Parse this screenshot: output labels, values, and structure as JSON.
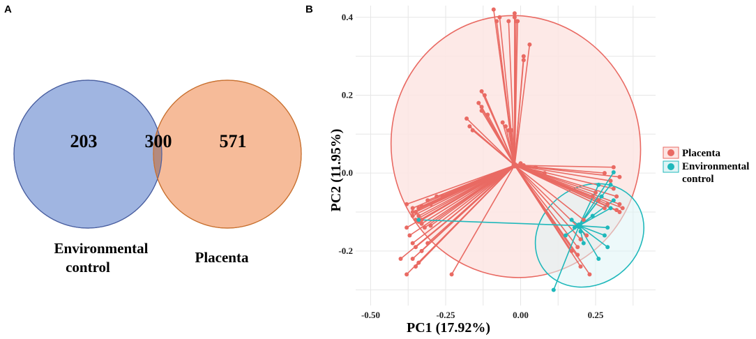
{
  "panels": {
    "a": "A",
    "b": "B"
  },
  "venn": {
    "sets": [
      {
        "name": "Environmental control",
        "name_line1": "Environmental",
        "name_line2": "control",
        "only": "203",
        "color": "#8fa8dc",
        "stroke": "#4a5fa0"
      },
      {
        "name": "Placenta",
        "only": "571",
        "color": "#f4aa7f",
        "stroke": "#c8702f"
      }
    ],
    "shared": "300"
  },
  "chart_data": {
    "type": "scatter",
    "title": "",
    "xlabel": "PC1 (17.92%)",
    "ylabel": "PC2 (11.95%)",
    "xlim": [
      -0.55,
      0.45
    ],
    "ylim": [
      -0.34,
      0.43
    ],
    "x_ticks": [
      -0.5,
      -0.25,
      0.0,
      0.25
    ],
    "x_tick_labels": [
      "-0.50",
      "-0.25",
      "0.00",
      "0.25"
    ],
    "y_ticks": [
      0.4,
      0.2,
      0.0,
      -0.2
    ],
    "y_tick_labels": [
      "0.4",
      "0.2",
      "0.0",
      "-0.2"
    ],
    "legend": {
      "position": "right",
      "entries": [
        {
          "label": "Placenta",
          "color": "#e96a63"
        },
        {
          "label_line1": "Environmental",
          "label_line2": "control",
          "label": "Environmental control",
          "color": "#1fb8bb"
        }
      ]
    },
    "series": [
      {
        "name": "Placenta",
        "color": "#e96a63",
        "fill": "#fde5e3",
        "centroid": [
          -0.02,
          0.02
        ],
        "ellipse": {
          "cx": -0.016,
          "cy": 0.068,
          "rx": 0.415,
          "ry": 0.337,
          "angle_deg": 12
        },
        "points": [
          [
            -0.09,
            0.42
          ],
          [
            -0.07,
            0.4
          ],
          [
            -0.08,
            0.39
          ],
          [
            -0.04,
            0.39
          ],
          [
            -0.02,
            0.4
          ],
          [
            -0.01,
            0.39
          ],
          [
            -0.02,
            0.41
          ],
          [
            -0.015,
            0.39
          ],
          [
            0.03,
            0.33
          ],
          [
            0.01,
            0.29
          ],
          [
            0.01,
            0.3
          ],
          [
            -0.13,
            0.21
          ],
          [
            -0.12,
            0.2
          ],
          [
            -0.14,
            0.18
          ],
          [
            -0.13,
            0.17
          ],
          [
            -0.13,
            0.16
          ],
          [
            -0.11,
            0.15
          ],
          [
            -0.18,
            0.14
          ],
          [
            -0.17,
            0.12
          ],
          [
            -0.16,
            0.11
          ],
          [
            -0.06,
            0.13
          ],
          [
            -0.05,
            0.12
          ],
          [
            -0.03,
            0.11
          ],
          [
            -0.04,
            0.11
          ],
          [
            0.0,
            0.025
          ],
          [
            0.01,
            0.02
          ],
          [
            0.05,
            0.015
          ],
          [
            0.08,
            0.0
          ],
          [
            0.31,
            0.015
          ],
          [
            0.28,
            0.0
          ],
          [
            0.33,
            -0.01
          ],
          [
            0.3,
            -0.02
          ],
          [
            0.31,
            -0.04
          ],
          [
            0.32,
            -0.06
          ],
          [
            0.33,
            -0.08
          ],
          [
            0.34,
            -0.09
          ],
          [
            0.33,
            -0.1
          ],
          [
            0.32,
            -0.095
          ],
          [
            0.29,
            -0.08
          ],
          [
            0.28,
            -0.09
          ],
          [
            0.25,
            -0.05
          ],
          [
            0.26,
            -0.07
          ],
          [
            0.24,
            -0.06
          ],
          [
            0.21,
            -0.12
          ],
          [
            0.22,
            -0.16
          ],
          [
            0.2,
            -0.17
          ],
          [
            0.19,
            -0.19
          ],
          [
            0.19,
            -0.21
          ],
          [
            0.2,
            -0.24
          ],
          [
            0.17,
            -0.2
          ],
          [
            0.23,
            -0.26
          ],
          [
            -0.38,
            -0.08
          ],
          [
            -0.36,
            -0.09
          ],
          [
            -0.35,
            -0.1
          ],
          [
            -0.34,
            -0.09
          ],
          [
            -0.33,
            -0.085
          ],
          [
            -0.31,
            -0.07
          ],
          [
            -0.3,
            -0.08
          ],
          [
            -0.28,
            -0.06
          ],
          [
            -0.26,
            -0.06
          ],
          [
            -0.36,
            -0.11
          ],
          [
            -0.35,
            -0.12
          ],
          [
            -0.34,
            -0.125
          ],
          [
            -0.33,
            -0.13
          ],
          [
            -0.32,
            -0.14
          ],
          [
            -0.3,
            -0.135
          ],
          [
            -0.38,
            -0.14
          ],
          [
            -0.37,
            -0.16
          ],
          [
            -0.36,
            -0.18
          ],
          [
            -0.35,
            -0.19
          ],
          [
            -0.33,
            -0.2
          ],
          [
            -0.36,
            -0.22
          ],
          [
            -0.34,
            -0.23
          ],
          [
            -0.35,
            -0.24
          ],
          [
            -0.4,
            -0.22
          ],
          [
            -0.38,
            -0.26
          ],
          [
            -0.23,
            -0.26
          ],
          [
            -0.33,
            -0.12
          ],
          [
            -0.36,
            -0.1
          ],
          [
            -0.34,
            -0.11
          ],
          [
            -0.31,
            -0.18
          ]
        ]
      },
      {
        "name": "Environmental control",
        "color": "#1fb8bb",
        "fill": "#dff4f5",
        "centroid": [
          0.195,
          -0.135
        ],
        "ellipse": {
          "cx": 0.23,
          "cy": -0.16,
          "rx": 0.19,
          "ry": 0.125,
          "angle_deg": 36
        },
        "points": [
          [
            -0.34,
            -0.12
          ],
          [
            0.31,
            0.002
          ],
          [
            0.3,
            -0.03
          ],
          [
            0.26,
            -0.03
          ],
          [
            0.27,
            -0.06
          ],
          [
            0.31,
            -0.07
          ],
          [
            0.3,
            -0.09
          ],
          [
            0.24,
            -0.11
          ],
          [
            0.29,
            -0.14
          ],
          [
            0.28,
            -0.16
          ],
          [
            0.29,
            -0.19
          ],
          [
            0.26,
            -0.22
          ],
          [
            0.21,
            -0.18
          ],
          [
            0.2,
            -0.15
          ],
          [
            0.18,
            -0.14
          ],
          [
            0.15,
            -0.16
          ],
          [
            0.11,
            -0.3
          ],
          [
            0.17,
            -0.12
          ]
        ]
      }
    ]
  }
}
